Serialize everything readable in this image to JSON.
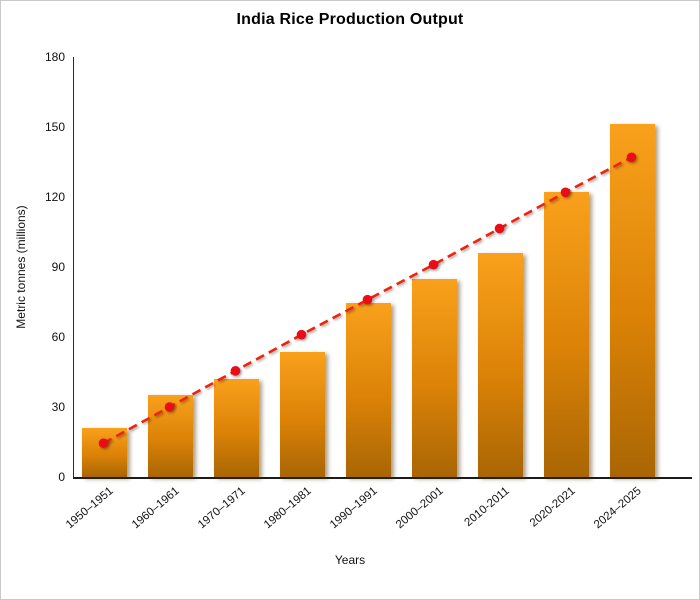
{
  "chart_data": {
    "type": "bar",
    "title": "India Rice Production Output",
    "xlabel": "Years",
    "ylabel": "Metric tonnes (millions)",
    "ylim": [
      0,
      180
    ],
    "ytick_step": 30,
    "grid": false,
    "legend": "none",
    "categories": [
      "1950–1951",
      "1960–1961",
      "1970–1971",
      "1980–1981",
      "1990–1991",
      "2000–2001",
      "2010-2011",
      "2020-2021",
      "2024–2025"
    ],
    "series": [
      {
        "name": "Rice production bars",
        "type": "bar",
        "values": [
          21,
          35,
          42,
          53.5,
          74.5,
          85,
          96,
          122,
          151.5
        ]
      },
      {
        "name": "Trend line",
        "type": "line",
        "style": "dashed-with-dots",
        "values": [
          14.5,
          30,
          45.5,
          61,
          76,
          91,
          106.5,
          122,
          137
        ]
      }
    ],
    "colors": {
      "bar_top": "#F9A11C",
      "bar_mid": "#DB8207",
      "bar_bottom": "#A96604",
      "trend_line": "#F02311",
      "trend_dot": "#E81114",
      "axis": "#1c1c1c",
      "text": "#111111"
    }
  }
}
